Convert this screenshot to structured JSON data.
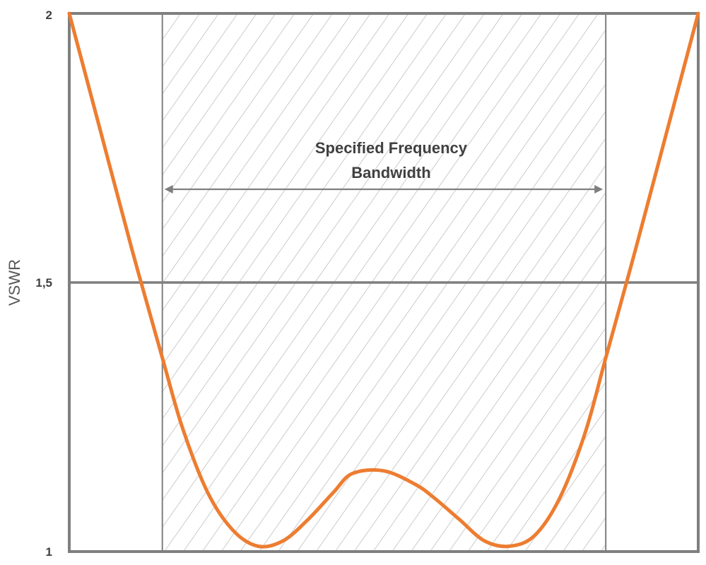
{
  "chart_data": {
    "type": "line",
    "title": "",
    "xlabel": "",
    "ylabel": "VSWR",
    "ylim": [
      1,
      2
    ],
    "xlim": [
      0,
      1
    ],
    "grid": false,
    "y_ticks": [
      {
        "value": 2,
        "label": "2"
      },
      {
        "value": 1.5,
        "label": "1,5"
      },
      {
        "value": 1,
        "label": "1"
      }
    ],
    "reference_line": {
      "value": 1.5
    },
    "band": {
      "start": 0.148,
      "end": 0.853,
      "annotation_line1": "Specified Frequency",
      "annotation_line2": "Bandwidth",
      "hatched": true
    },
    "series": [
      {
        "color": "#ED7D31",
        "x": [
          0.0,
          0.05,
          0.1,
          0.148,
          0.18,
          0.22,
          0.26,
          0.3,
          0.34,
          0.38,
          0.42,
          0.45,
          0.5,
          0.55,
          0.58,
          0.62,
          0.66,
          0.7,
          0.74,
          0.78,
          0.82,
          0.853,
          0.9,
          0.95,
          1.0
        ],
        "values": [
          2.0,
          1.78,
          1.56,
          1.36,
          1.23,
          1.11,
          1.04,
          1.01,
          1.02,
          1.06,
          1.11,
          1.145,
          1.15,
          1.125,
          1.1,
          1.06,
          1.02,
          1.01,
          1.03,
          1.1,
          1.22,
          1.36,
          1.56,
          1.78,
          2.0
        ]
      }
    ],
    "colors": {
      "frame": "#7F7F7F",
      "band_lines": "#7F7F7F",
      "hatch": "#BFBFBF",
      "arrow": "#7F7F7F",
      "curve": "#ED7D31"
    }
  }
}
